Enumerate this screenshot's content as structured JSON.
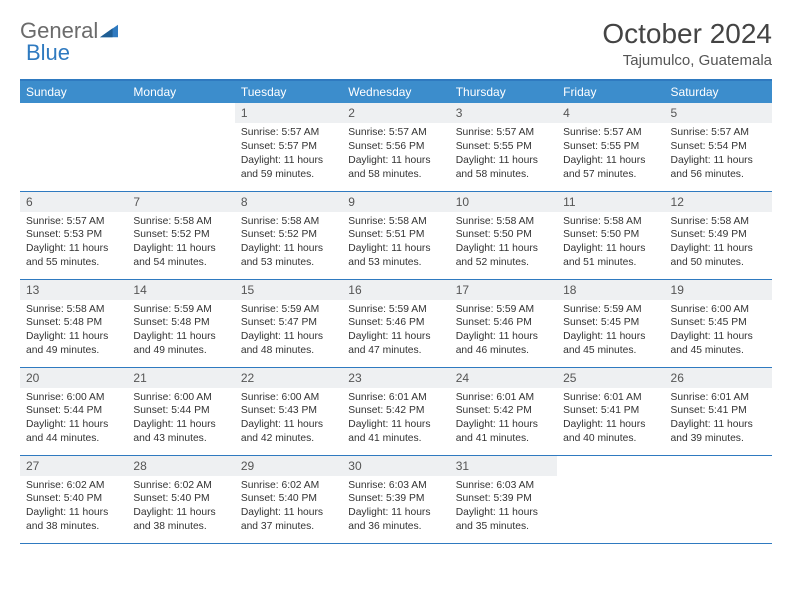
{
  "logo": {
    "general": "General",
    "blue": "Blue"
  },
  "title": "October 2024",
  "location": "Tajumulco, Guatemala",
  "dayNames": [
    "Sunday",
    "Monday",
    "Tuesday",
    "Wednesday",
    "Thursday",
    "Friday",
    "Saturday"
  ],
  "colors": {
    "headerBg": "#3c8dcc",
    "border": "#2f7ac0",
    "dayNumBg": "#eef0f2"
  },
  "weeks": [
    [
      null,
      null,
      {
        "n": "1",
        "sr": "5:57 AM",
        "ss": "5:57 PM",
        "dl": "11 hours",
        "dlm": "and 59 minutes."
      },
      {
        "n": "2",
        "sr": "5:57 AM",
        "ss": "5:56 PM",
        "dl": "11 hours",
        "dlm": "and 58 minutes."
      },
      {
        "n": "3",
        "sr": "5:57 AM",
        "ss": "5:55 PM",
        "dl": "11 hours",
        "dlm": "and 58 minutes."
      },
      {
        "n": "4",
        "sr": "5:57 AM",
        "ss": "5:55 PM",
        "dl": "11 hours",
        "dlm": "and 57 minutes."
      },
      {
        "n": "5",
        "sr": "5:57 AM",
        "ss": "5:54 PM",
        "dl": "11 hours",
        "dlm": "and 56 minutes."
      }
    ],
    [
      {
        "n": "6",
        "sr": "5:57 AM",
        "ss": "5:53 PM",
        "dl": "11 hours",
        "dlm": "and 55 minutes."
      },
      {
        "n": "7",
        "sr": "5:58 AM",
        "ss": "5:52 PM",
        "dl": "11 hours",
        "dlm": "and 54 minutes."
      },
      {
        "n": "8",
        "sr": "5:58 AM",
        "ss": "5:52 PM",
        "dl": "11 hours",
        "dlm": "and 53 minutes."
      },
      {
        "n": "9",
        "sr": "5:58 AM",
        "ss": "5:51 PM",
        "dl": "11 hours",
        "dlm": "and 53 minutes."
      },
      {
        "n": "10",
        "sr": "5:58 AM",
        "ss": "5:50 PM",
        "dl": "11 hours",
        "dlm": "and 52 minutes."
      },
      {
        "n": "11",
        "sr": "5:58 AM",
        "ss": "5:50 PM",
        "dl": "11 hours",
        "dlm": "and 51 minutes."
      },
      {
        "n": "12",
        "sr": "5:58 AM",
        "ss": "5:49 PM",
        "dl": "11 hours",
        "dlm": "and 50 minutes."
      }
    ],
    [
      {
        "n": "13",
        "sr": "5:58 AM",
        "ss": "5:48 PM",
        "dl": "11 hours",
        "dlm": "and 49 minutes."
      },
      {
        "n": "14",
        "sr": "5:59 AM",
        "ss": "5:48 PM",
        "dl": "11 hours",
        "dlm": "and 49 minutes."
      },
      {
        "n": "15",
        "sr": "5:59 AM",
        "ss": "5:47 PM",
        "dl": "11 hours",
        "dlm": "and 48 minutes."
      },
      {
        "n": "16",
        "sr": "5:59 AM",
        "ss": "5:46 PM",
        "dl": "11 hours",
        "dlm": "and 47 minutes."
      },
      {
        "n": "17",
        "sr": "5:59 AM",
        "ss": "5:46 PM",
        "dl": "11 hours",
        "dlm": "and 46 minutes."
      },
      {
        "n": "18",
        "sr": "5:59 AM",
        "ss": "5:45 PM",
        "dl": "11 hours",
        "dlm": "and 45 minutes."
      },
      {
        "n": "19",
        "sr": "6:00 AM",
        "ss": "5:45 PM",
        "dl": "11 hours",
        "dlm": "and 45 minutes."
      }
    ],
    [
      {
        "n": "20",
        "sr": "6:00 AM",
        "ss": "5:44 PM",
        "dl": "11 hours",
        "dlm": "and 44 minutes."
      },
      {
        "n": "21",
        "sr": "6:00 AM",
        "ss": "5:44 PM",
        "dl": "11 hours",
        "dlm": "and 43 minutes."
      },
      {
        "n": "22",
        "sr": "6:00 AM",
        "ss": "5:43 PM",
        "dl": "11 hours",
        "dlm": "and 42 minutes."
      },
      {
        "n": "23",
        "sr": "6:01 AM",
        "ss": "5:42 PM",
        "dl": "11 hours",
        "dlm": "and 41 minutes."
      },
      {
        "n": "24",
        "sr": "6:01 AM",
        "ss": "5:42 PM",
        "dl": "11 hours",
        "dlm": "and 41 minutes."
      },
      {
        "n": "25",
        "sr": "6:01 AM",
        "ss": "5:41 PM",
        "dl": "11 hours",
        "dlm": "and 40 minutes."
      },
      {
        "n": "26",
        "sr": "6:01 AM",
        "ss": "5:41 PM",
        "dl": "11 hours",
        "dlm": "and 39 minutes."
      }
    ],
    [
      {
        "n": "27",
        "sr": "6:02 AM",
        "ss": "5:40 PM",
        "dl": "11 hours",
        "dlm": "and 38 minutes."
      },
      {
        "n": "28",
        "sr": "6:02 AM",
        "ss": "5:40 PM",
        "dl": "11 hours",
        "dlm": "and 38 minutes."
      },
      {
        "n": "29",
        "sr": "6:02 AM",
        "ss": "5:40 PM",
        "dl": "11 hours",
        "dlm": "and 37 minutes."
      },
      {
        "n": "30",
        "sr": "6:03 AM",
        "ss": "5:39 PM",
        "dl": "11 hours",
        "dlm": "and 36 minutes."
      },
      {
        "n": "31",
        "sr": "6:03 AM",
        "ss": "5:39 PM",
        "dl": "11 hours",
        "dlm": "and 35 minutes."
      },
      null,
      null
    ]
  ],
  "labels": {
    "sunrise": "Sunrise: ",
    "sunset": "Sunset: ",
    "daylight": "Daylight: "
  }
}
